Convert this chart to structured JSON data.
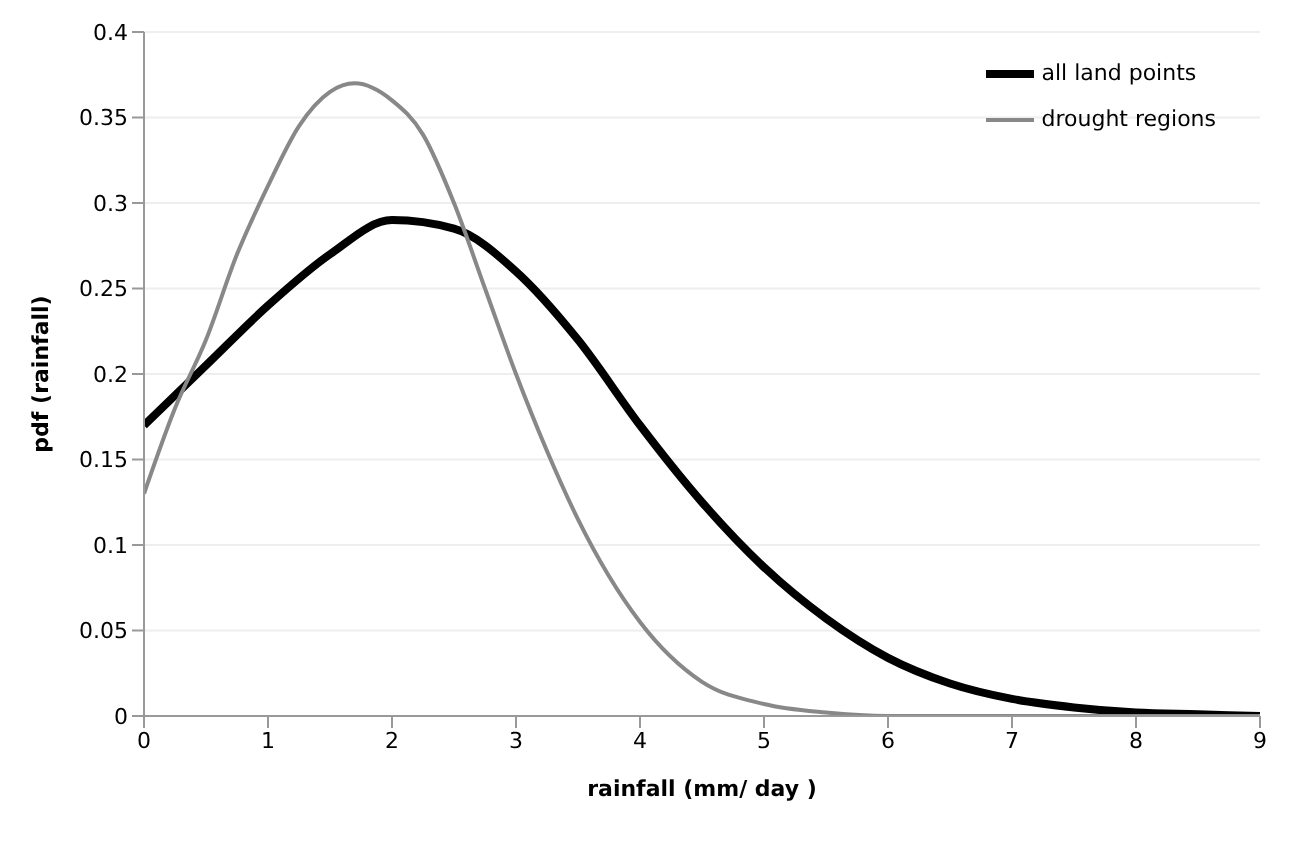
{
  "chart_data": {
    "type": "line",
    "xlabel": "rainfall (mm/ day )",
    "ylabel": "pdf (rainfall)",
    "xlim": [
      0,
      9
    ],
    "xticks": [
      0,
      1,
      2,
      3,
      4,
      5,
      6,
      7,
      8,
      9
    ],
    "ylim": [
      0,
      0.4
    ],
    "yticks": [
      0,
      0.05,
      0.1,
      0.15,
      0.2,
      0.25,
      0.3,
      0.35,
      0.4
    ],
    "grid": "y",
    "legend": "top right",
    "marker": "none",
    "line_style": "solid",
    "series": [
      {
        "name": "all land points",
        "color": "#000000",
        "x": [
          0,
          0.5,
          1,
          1.5,
          2,
          2.5,
          3,
          3.5,
          4,
          4.5,
          5,
          5.5,
          6,
          6.5,
          7,
          7.5,
          8,
          8.5,
          9
        ],
        "values": [
          0.17,
          0.205,
          0.24,
          0.27,
          0.29,
          0.285,
          0.26,
          0.22,
          0.17,
          0.125,
          0.087,
          0.057,
          0.034,
          0.019,
          0.01,
          0.005,
          0.002,
          0.001,
          0
        ]
      },
      {
        "name": "drought regions",
        "color": "#888888",
        "x": [
          0,
          0.25,
          0.5,
          0.75,
          1,
          1.25,
          1.5,
          1.7,
          2,
          2.25,
          2.5,
          2.75,
          3,
          3.25,
          3.5,
          4,
          4.5,
          5,
          5.5,
          6,
          9
        ],
        "values": [
          0.13,
          0.18,
          0.22,
          0.27,
          0.31,
          0.345,
          0.365,
          0.37,
          0.36,
          0.34,
          0.3,
          0.25,
          0.2,
          0.155,
          0.115,
          0.055,
          0.02,
          0.007,
          0.002,
          0,
          0
        ]
      }
    ]
  }
}
